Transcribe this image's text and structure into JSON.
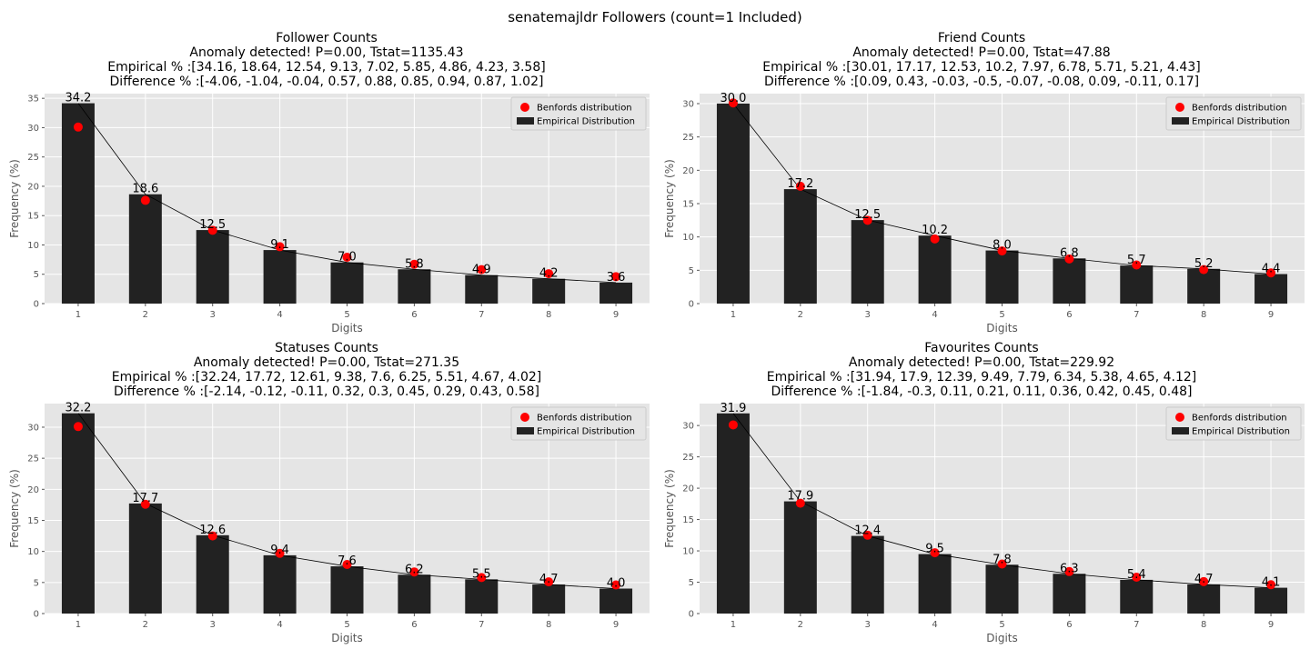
{
  "suptitle": "senatemajldr Followers (count=1 Included)",
  "colors": {
    "axes_bg": "#e5e5e5",
    "grid": "#ffffff",
    "bar": "#222222",
    "benford": "#ff0000",
    "line": "#000000",
    "tick": "#555555"
  },
  "legend_labels": {
    "benford": "Benfords distribution",
    "empirical": "Empirical Distribution"
  },
  "chart_data": [
    {
      "type": "bar",
      "title_lines": [
        "Follower Counts",
        "Anomaly detected! P=0.00, Tstat=1135.43",
        "Empirical % :[34.16, 18.64, 12.54, 9.13, 7.02, 5.85, 4.86, 4.23, 3.58]",
        "Difference % :[-4.06, -1.04, -0.04, 0.57, 0.88, 0.85, 0.94, 0.87, 1.02]"
      ],
      "xlabel": "Digits",
      "ylabel": "Frequency (%)",
      "categories": [
        "1",
        "2",
        "3",
        "4",
        "5",
        "6",
        "7",
        "8",
        "9"
      ],
      "ylim": [
        0,
        35.8
      ],
      "yticks": [
        0,
        5,
        10,
        15,
        20,
        25,
        30,
        35
      ],
      "grid": true,
      "legend": "upper right",
      "series": [
        {
          "name": "Empirical Distribution",
          "kind": "bar",
          "values": [
            34.16,
            18.64,
            12.54,
            9.13,
            7.02,
            5.85,
            4.86,
            4.23,
            3.58
          ]
        },
        {
          "name": "Benfords distribution",
          "kind": "scatter",
          "values": [
            30.1,
            17.6,
            12.5,
            9.7,
            7.9,
            6.7,
            5.8,
            5.1,
            4.6
          ]
        }
      ],
      "bar_labels": [
        "34.2",
        "18.6",
        "12.5",
        "9.1",
        "7.0",
        "5.8",
        "4.9",
        "4.2",
        "3.6"
      ]
    },
    {
      "type": "bar",
      "title_lines": [
        "Friend Counts",
        "Anomaly detected! P=0.00, Tstat=47.88",
        "Empirical % :[30.01, 17.17, 12.53, 10.2, 7.97, 6.78, 5.71, 5.21, 4.43]",
        "Difference % :[0.09, 0.43, -0.03, -0.5, -0.07, -0.08, 0.09, -0.11, 0.17]"
      ],
      "xlabel": "Digits",
      "ylabel": "Frequency (%)",
      "categories": [
        "1",
        "2",
        "3",
        "4",
        "5",
        "6",
        "7",
        "8",
        "9"
      ],
      "ylim": [
        0,
        31.5
      ],
      "yticks": [
        0,
        5,
        10,
        15,
        20,
        25,
        30
      ],
      "grid": true,
      "legend": "upper right",
      "series": [
        {
          "name": "Empirical Distribution",
          "kind": "bar",
          "values": [
            30.01,
            17.17,
            12.53,
            10.2,
            7.97,
            6.78,
            5.71,
            5.21,
            4.43
          ]
        },
        {
          "name": "Benfords distribution",
          "kind": "scatter",
          "values": [
            30.1,
            17.6,
            12.5,
            9.7,
            7.9,
            6.7,
            5.8,
            5.1,
            4.6
          ]
        }
      ],
      "bar_labels": [
        "30.0",
        "17.2",
        "12.5",
        "10.2",
        "8.0",
        "6.8",
        "5.7",
        "5.2",
        "4.4"
      ]
    },
    {
      "type": "bar",
      "title_lines": [
        "Statuses Counts",
        "Anomaly detected! P=0.00, Tstat=271.35",
        "Empirical % :[32.24, 17.72, 12.61, 9.38, 7.6, 6.25, 5.51, 4.67, 4.02]",
        "Difference % :[-2.14, -0.12, -0.11, 0.32, 0.3, 0.45, 0.29, 0.43, 0.58]"
      ],
      "xlabel": "Digits",
      "ylabel": "Frequency (%)",
      "categories": [
        "1",
        "2",
        "3",
        "4",
        "5",
        "6",
        "7",
        "8",
        "9"
      ],
      "ylim": [
        0,
        33.8
      ],
      "yticks": [
        0,
        5,
        10,
        15,
        20,
        25,
        30
      ],
      "grid": true,
      "legend": "upper right",
      "series": [
        {
          "name": "Empirical Distribution",
          "kind": "bar",
          "values": [
            32.24,
            17.72,
            12.61,
            9.38,
            7.6,
            6.25,
            5.51,
            4.67,
            4.02
          ]
        },
        {
          "name": "Benfords distribution",
          "kind": "scatter",
          "values": [
            30.1,
            17.6,
            12.5,
            9.7,
            7.9,
            6.7,
            5.8,
            5.1,
            4.6
          ]
        }
      ],
      "bar_labels": [
        "32.2",
        "17.7",
        "12.6",
        "9.4",
        "7.6",
        "6.2",
        "5.5",
        "4.7",
        "4.0"
      ]
    },
    {
      "type": "bar",
      "title_lines": [
        "Favourites Counts",
        "Anomaly detected! P=0.00, Tstat=229.92",
        "Empirical % :[31.94, 17.9, 12.39, 9.49, 7.79, 6.34, 5.38, 4.65, 4.12]",
        "Difference % :[-1.84, -0.3, 0.11, 0.21, 0.11, 0.36, 0.42, 0.45, 0.48]"
      ],
      "xlabel": "Digits",
      "ylabel": "Frequency (%)",
      "categories": [
        "1",
        "2",
        "3",
        "4",
        "5",
        "6",
        "7",
        "8",
        "9"
      ],
      "ylim": [
        0,
        33.5
      ],
      "yticks": [
        0,
        5,
        10,
        15,
        20,
        25,
        30
      ],
      "grid": true,
      "legend": "upper right",
      "series": [
        {
          "name": "Empirical Distribution",
          "kind": "bar",
          "values": [
            31.94,
            17.9,
            12.39,
            9.49,
            7.79,
            6.34,
            5.38,
            4.65,
            4.12
          ]
        },
        {
          "name": "Benfords distribution",
          "kind": "scatter",
          "values": [
            30.1,
            17.6,
            12.5,
            9.7,
            7.9,
            6.7,
            5.8,
            5.1,
            4.6
          ]
        }
      ],
      "bar_labels": [
        "31.9",
        "17.9",
        "12.4",
        "9.5",
        "7.8",
        "6.3",
        "5.4",
        "4.7",
        "4.1"
      ]
    }
  ]
}
